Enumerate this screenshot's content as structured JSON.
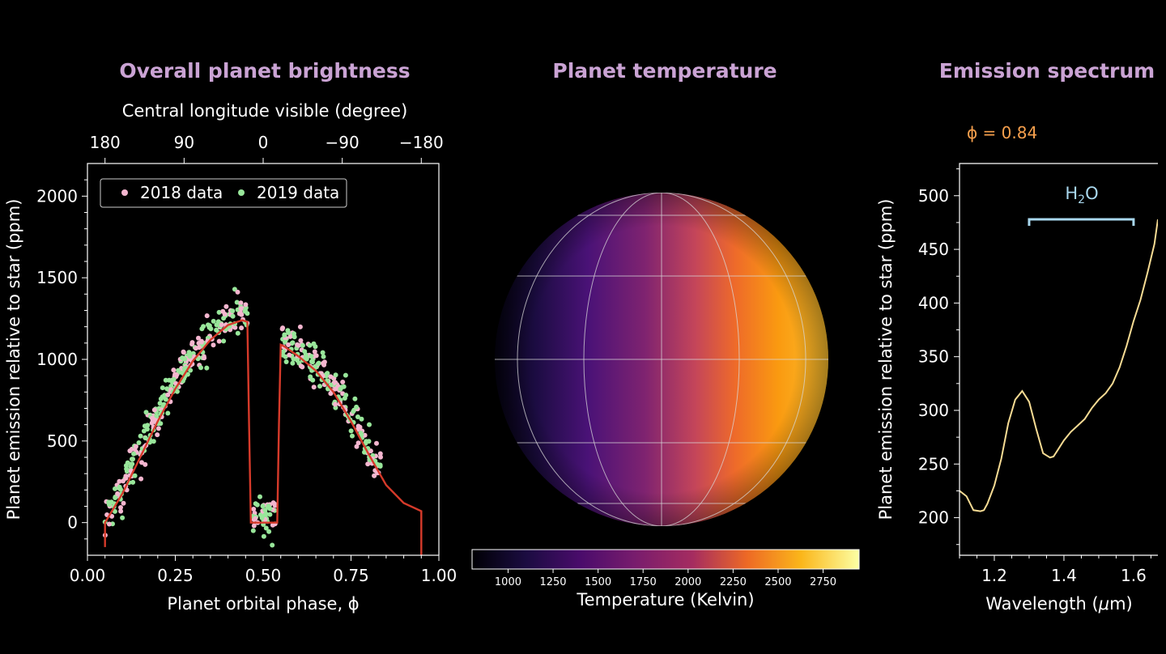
{
  "chart_data": [
    {
      "type": "scatter",
      "title": "Overall planet brightness",
      "xlabel": "Planet orbital phase, ϕ",
      "ylabel": "Planet emission relative to star (ppm)",
      "top_xlabel": "Central longitude visible (degree)",
      "xlim": [
        0.0,
        1.0
      ],
      "ylim": [
        -200,
        2200
      ],
      "x_ticks": [
        "0.00",
        "0.25",
        "0.50",
        "0.75",
        "1.00"
      ],
      "y_ticks": [
        "0",
        "500",
        "1000",
        "1500",
        "2000"
      ],
      "top_ticks": [
        "180",
        "90",
        "0",
        "−90",
        "−180"
      ],
      "top_tick_phases": [
        0.05,
        0.275,
        0.5,
        0.725,
        0.95
      ],
      "legend": [
        "2018 data",
        "2019 data"
      ],
      "legend_colors": [
        "#f4b6cf",
        "#98e69a"
      ],
      "model_color": "#d63a2a",
      "model": {
        "x": [
          0.05,
          0.05,
          0.1,
          0.15,
          0.2,
          0.25,
          0.3,
          0.35,
          0.4,
          0.44,
          0.455,
          0.46,
          0.465,
          0.54,
          0.545,
          0.55,
          0.56,
          0.6,
          0.65,
          0.7,
          0.75,
          0.8,
          0.85,
          0.9,
          0.95,
          0.95
        ],
        "y": [
          -150,
          0,
          180,
          400,
          620,
          820,
          990,
          1120,
          1210,
          1240,
          1230,
          600,
          0,
          0,
          600,
          1090,
          1080,
          1020,
          930,
          800,
          620,
          420,
          230,
          120,
          70,
          -200
        ]
      }
    },
    {
      "type": "heatmap",
      "title": "Planet temperature",
      "colorbar_label": "Temperature (Kelvin)",
      "colorbar_ticks": [
        "1000",
        "1250",
        "1500",
        "1750",
        "2000",
        "2250",
        "2500",
        "2750"
      ],
      "colorbar_range": [
        800,
        2950
      ]
    },
    {
      "type": "line",
      "title": "Emission spectrum",
      "phase_label": "ϕ = 0.84",
      "xlabel": "Wavelength (μm)",
      "ylabel": "Planet emission relative to star (ppm)",
      "xlim": [
        1.1,
        1.67
      ],
      "ylim": [
        165,
        530
      ],
      "x_ticks": [
        "1.2",
        "1.4",
        "1.6"
      ],
      "y_ticks": [
        "200",
        "250",
        "300",
        "350",
        "400",
        "450",
        "500"
      ],
      "annotation": "H2O",
      "annotation_range": [
        1.3,
        1.6
      ],
      "annotation_value": 478,
      "line_color": "#f7dc94",
      "annotation_color": "#a9d8ee",
      "x": [
        1.1,
        1.12,
        1.14,
        1.16,
        1.17,
        1.18,
        1.2,
        1.22,
        1.24,
        1.26,
        1.28,
        1.3,
        1.32,
        1.34,
        1.35,
        1.36,
        1.37,
        1.38,
        1.4,
        1.42,
        1.44,
        1.46,
        1.48,
        1.5,
        1.52,
        1.54,
        1.56,
        1.58,
        1.6,
        1.62,
        1.64,
        1.66,
        1.67
      ],
      "y": [
        225,
        220,
        207,
        206,
        207,
        213,
        230,
        255,
        288,
        310,
        318,
        308,
        283,
        260,
        258,
        256,
        257,
        262,
        272,
        280,
        286,
        292,
        302,
        310,
        316,
        325,
        340,
        360,
        383,
        403,
        428,
        455,
        478
      ]
    }
  ]
}
